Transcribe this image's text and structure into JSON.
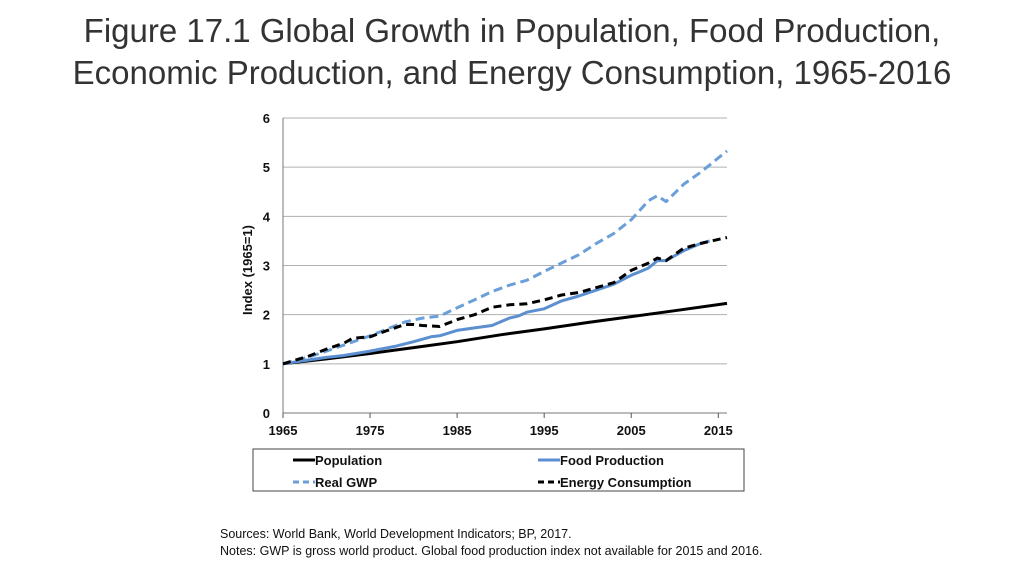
{
  "title": {
    "line1": "Figure 17.1 Global Growth in Population, Food Production,",
    "line2": "Economic Production, and Energy Consumption, 1965-2016"
  },
  "sources": "Sources: World Bank, World Development Indicators; BP, 2017.",
  "notes": "Notes: GWP is gross world product. Global food production index not available for 2015 and 2016.",
  "chart_data": {
    "type": "line",
    "title": "Figure 17.1 Global Growth in Population, Food Production, Economic Production, and Energy Consumption, 1965-2016",
    "xlabel": "",
    "ylabel": "Index (1965=1)",
    "xlim": [
      1965,
      2016
    ],
    "ylim": [
      0,
      6
    ],
    "xticks": [
      1965,
      1975,
      1985,
      1995,
      2005,
      2015
    ],
    "yticks": [
      0,
      1,
      2,
      3,
      4,
      5,
      6
    ],
    "grid": "horizontal",
    "legend_position": "bottom",
    "series": [
      {
        "name": "Population",
        "color": "#000000",
        "style": "solid",
        "x": [
          1965,
          1970,
          1975,
          1980,
          1985,
          1990,
          1995,
          2000,
          2005,
          2010,
          2016
        ],
        "values": [
          1.0,
          1.1,
          1.21,
          1.33,
          1.45,
          1.59,
          1.71,
          1.84,
          1.96,
          2.08,
          2.23
        ]
      },
      {
        "name": "Food Production",
        "color": "#5b8fd0",
        "style": "solid",
        "x": [
          1965,
          1968,
          1970,
          1972,
          1975,
          1978,
          1980,
          1982,
          1983,
          1985,
          1987,
          1989,
          1991,
          1992,
          1993,
          1995,
          1997,
          1999,
          2001,
          2003,
          2005,
          2007,
          2008,
          2009,
          2011,
          2013,
          2014
        ],
        "values": [
          1.0,
          1.08,
          1.13,
          1.17,
          1.26,
          1.36,
          1.45,
          1.55,
          1.57,
          1.68,
          1.73,
          1.78,
          1.93,
          1.97,
          2.05,
          2.12,
          2.28,
          2.38,
          2.5,
          2.62,
          2.8,
          2.95,
          3.1,
          3.1,
          3.3,
          3.45,
          3.5
        ]
      },
      {
        "name": "Real GWP",
        "color": "#6a9fd8",
        "style": "dashed",
        "x": [
          1965,
          1968,
          1970,
          1972,
          1975,
          1977,
          1979,
          1981,
          1983,
          1985,
          1987,
          1989,
          1991,
          1993,
          1995,
          1997,
          1999,
          2001,
          2003,
          2005,
          2007,
          2008,
          2009,
          2011,
          2013,
          2016
        ],
        "values": [
          1.0,
          1.14,
          1.26,
          1.38,
          1.57,
          1.71,
          1.85,
          1.93,
          1.97,
          2.14,
          2.3,
          2.47,
          2.6,
          2.7,
          2.88,
          3.05,
          3.22,
          3.45,
          3.65,
          3.93,
          4.32,
          4.42,
          4.3,
          4.65,
          4.9,
          5.33
        ]
      },
      {
        "name": "Energy Consumption",
        "color": "#000000",
        "style": "dashed",
        "x": [
          1965,
          1968,
          1970,
          1972,
          1973,
          1975,
          1977,
          1979,
          1980,
          1981,
          1983,
          1985,
          1987,
          1989,
          1991,
          1993,
          1995,
          1997,
          1999,
          2001,
          2003,
          2005,
          2007,
          2008,
          2009,
          2011,
          2013,
          2016
        ],
        "values": [
          1.0,
          1.16,
          1.3,
          1.42,
          1.52,
          1.55,
          1.68,
          1.8,
          1.8,
          1.78,
          1.76,
          1.9,
          2.0,
          2.15,
          2.2,
          2.22,
          2.3,
          2.4,
          2.45,
          2.55,
          2.65,
          2.9,
          3.05,
          3.15,
          3.1,
          3.35,
          3.45,
          3.57
        ]
      }
    ]
  }
}
